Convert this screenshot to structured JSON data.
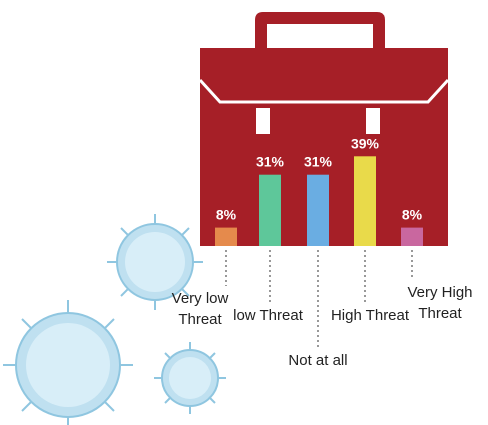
{
  "chart_data": {
    "type": "bar",
    "categories": [
      "Very low Threat",
      "low Threat",
      "Not at all",
      "High Threat",
      "Very High Threat"
    ],
    "values": [
      8,
      31,
      31,
      39,
      8
    ],
    "value_labels": [
      "8%",
      "31%",
      "31%",
      "39%",
      "8%"
    ],
    "colors": [
      "#e58a4c",
      "#5ec79a",
      "#6aade2",
      "#e9da4a",
      "#c9679f"
    ]
  }
}
